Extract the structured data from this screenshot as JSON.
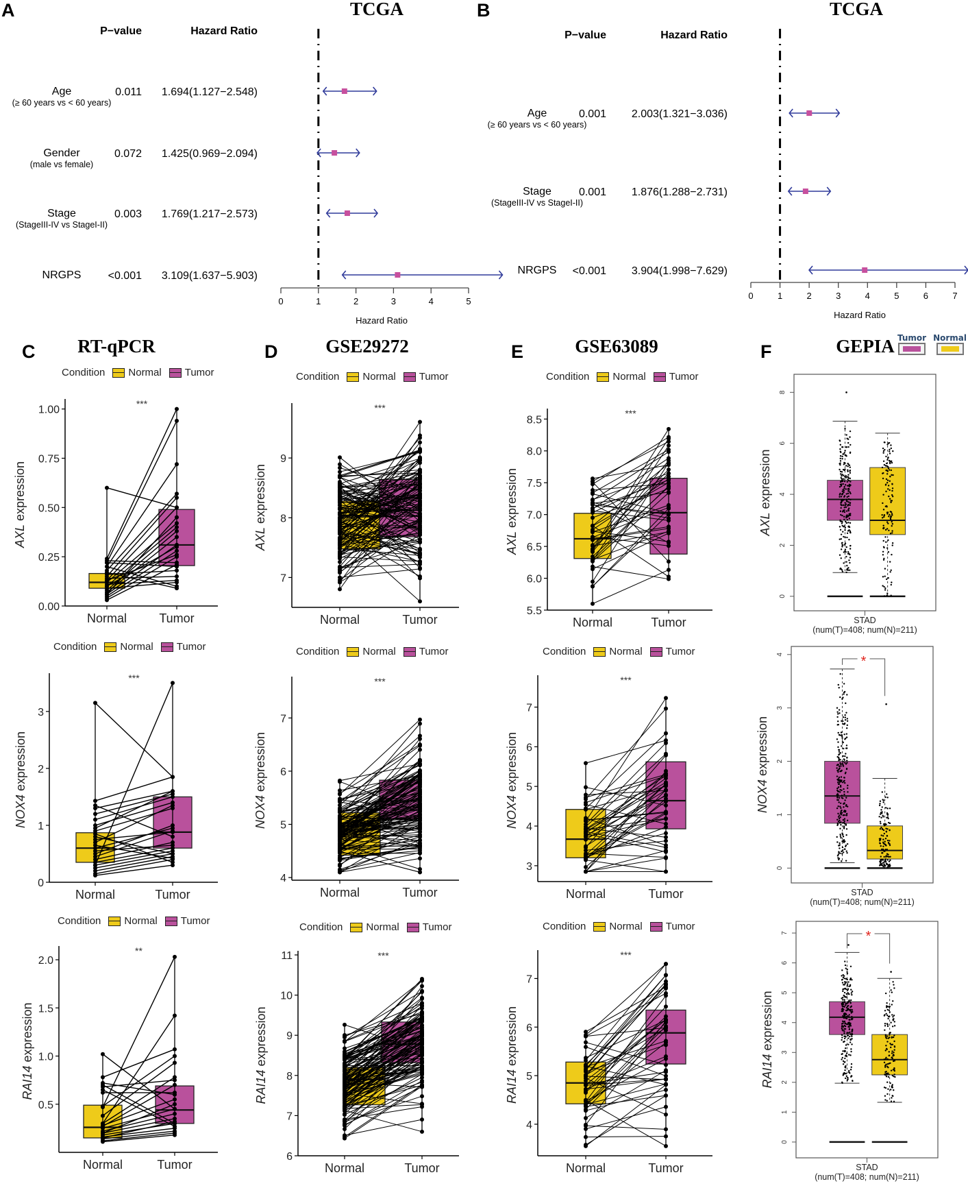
{
  "colors": {
    "normal": "#EECB1A",
    "tumor": "#B9519C",
    "forest_line": "#2F3A9A",
    "forest_point": "#C7509E",
    "significance_star": "#E0231B",
    "gepia_legend_label": "#2B4A6F"
  },
  "panels": {
    "A": {
      "letter": "A",
      "title": "TCGA"
    },
    "B": {
      "letter": "B",
      "title": "TCGA"
    },
    "C": {
      "letter": "C",
      "title": "RT-qPCR"
    },
    "D": {
      "letter": "D",
      "title": "GSE29272"
    },
    "E": {
      "letter": "E",
      "title": "GSE63089"
    },
    "F": {
      "letter": "F",
      "title": "GEPIA"
    }
  },
  "legend": {
    "title": "Condition",
    "normal": "Normal",
    "tumor": "Tumor"
  },
  "gepia_legend": {
    "tumor": "Tumor",
    "normal": "Normal"
  },
  "chart_data": [
    {
      "id": "A",
      "type": "forest",
      "title": "TCGA",
      "columns": {
        "pvalue": "P−value",
        "hr": "Hazard Ratio"
      },
      "xlabel": "Hazard Ratio",
      "xticks": [
        0,
        1,
        2,
        3,
        4,
        5
      ],
      "xlim": [
        0,
        5
      ],
      "reference_line": 1,
      "rows": [
        {
          "label": "Age",
          "sublabel": "(≥ 60 years vs < 60 years)",
          "pvalue": "0.011",
          "hr_text": "1.694(1.127−2.548)",
          "hr": 1.694,
          "lower": 1.127,
          "upper": 2.548
        },
        {
          "label": "Gender",
          "sublabel": "(male vs female)",
          "pvalue": "0.072",
          "hr_text": "1.425(0.969−2.094)",
          "hr": 1.425,
          "lower": 0.969,
          "upper": 2.094
        },
        {
          "label": "Stage",
          "sublabel": "(StageIII-IV vs StageI-II)",
          "pvalue": "0.003",
          "hr_text": "1.769(1.217−2.573)",
          "hr": 1.769,
          "lower": 1.217,
          "upper": 2.573
        },
        {
          "label": "NRGPS",
          "sublabel": "",
          "pvalue": "<0.001",
          "hr_text": "3.109(1.637−5.903)",
          "hr": 3.109,
          "lower": 1.637,
          "upper": 5.903
        }
      ]
    },
    {
      "id": "B",
      "type": "forest",
      "title": "TCGA",
      "columns": {
        "pvalue": "P−value",
        "hr": "Hazard Ratio"
      },
      "xlabel": "Hazard Ratio",
      "xticks": [
        0,
        1,
        2,
        3,
        4,
        5,
        6,
        7
      ],
      "xlim": [
        0,
        7
      ],
      "reference_line": 1,
      "rows": [
        {
          "label": "Age",
          "sublabel": "(≥ 60 years vs < 60 years)",
          "pvalue": "0.001",
          "hr_text": "2.003(1.321−3.036)",
          "hr": 2.003,
          "lower": 1.321,
          "upper": 3.036
        },
        {
          "label": "Stage",
          "sublabel": "(StageIII-IV vs StageI-II)",
          "pvalue": "0.001",
          "hr_text": "1.876(1.288−2.731)",
          "hr": 1.876,
          "lower": 1.288,
          "upper": 2.731
        },
        {
          "label": "NRGPS",
          "sublabel": "",
          "pvalue": "<0.001",
          "hr_text": "3.904(1.998−7.629)",
          "hr": 3.904,
          "lower": 1.998,
          "upper": 7.629
        }
      ]
    },
    {
      "id": "C",
      "type": "paired-box",
      "dataset": "RT-qPCR",
      "categories": [
        "Normal",
        "Tumor"
      ],
      "plots": [
        {
          "gene": "AXL",
          "ylabel_suffix": " expression",
          "ylim": [
            0,
            1.03
          ],
          "yticks": [
            0,
            0.25,
            0.5,
            0.75,
            1.0
          ],
          "ytick_labels": [
            "0.00",
            "0.25",
            "0.50",
            "0.75",
            "1.00"
          ],
          "signif": "***",
          "box": {
            "Normal": {
              "q1": 0.09,
              "median": 0.12,
              "q3": 0.165
            },
            "Tumor": {
              "q1": 0.205,
              "median": 0.31,
              "q3": 0.49
            }
          },
          "pairs": [
            [
              0.6,
              0.5
            ],
            [
              0.24,
              1.0
            ],
            [
              0.22,
              0.94
            ],
            [
              0.2,
              0.72
            ],
            [
              0.18,
              0.57
            ],
            [
              0.15,
              0.55
            ],
            [
              0.13,
              0.5
            ],
            [
              0.12,
              0.42
            ],
            [
              0.1,
              0.4
            ],
            [
              0.08,
              0.38
            ],
            [
              0.07,
              0.35
            ],
            [
              0.06,
              0.31
            ],
            [
              0.05,
              0.28
            ],
            [
              0.04,
              0.25
            ],
            [
              0.23,
              0.22
            ],
            [
              0.22,
              0.2
            ],
            [
              0.16,
              0.18
            ],
            [
              0.14,
              0.15
            ],
            [
              0.11,
              0.13
            ],
            [
              0.09,
              0.12
            ],
            [
              0.2,
              0.1
            ],
            [
              0.17,
              0.09
            ],
            [
              0.13,
              0.26
            ],
            [
              0.1,
              0.3
            ],
            [
              0.06,
              0.45
            ],
            [
              0.03,
              0.21
            ]
          ]
        },
        {
          "gene": "NOX4",
          "ylabel_suffix": " expression",
          "ylim": [
            0,
            3.6
          ],
          "yticks": [
            0,
            1,
            2,
            3
          ],
          "ytick_labels": [
            "0",
            "1",
            "2",
            "3"
          ],
          "signif": "***",
          "box": {
            "Normal": {
              "q1": 0.35,
              "median": 0.6,
              "q3": 0.87
            },
            "Tumor": {
              "q1": 0.6,
              "median": 0.88,
              "q3": 1.5
            }
          },
          "pairs": [
            [
              3.15,
              1.85
            ],
            [
              0.3,
              3.5
            ],
            [
              1.43,
              1.85
            ],
            [
              1.3,
              1.6
            ],
            [
              1.2,
              1.55
            ],
            [
              1.1,
              1.5
            ],
            [
              1.0,
              1.4
            ],
            [
              0.9,
              1.3
            ],
            [
              0.8,
              0.5
            ],
            [
              0.7,
              1.35
            ],
            [
              0.6,
              0.95
            ],
            [
              0.5,
              1.0
            ],
            [
              0.45,
              0.9
            ],
            [
              0.4,
              0.7
            ],
            [
              0.35,
              0.6
            ],
            [
              0.3,
              0.55
            ],
            [
              0.25,
              0.5
            ],
            [
              0.2,
              0.45
            ],
            [
              0.15,
              0.4
            ],
            [
              0.12,
              0.3
            ],
            [
              0.85,
              0.35
            ],
            [
              0.75,
              0.88
            ],
            [
              0.55,
              0.65
            ],
            [
              0.65,
              0.42
            ],
            [
              1.35,
              0.8
            ],
            [
              0.95,
              1.6
            ]
          ]
        },
        {
          "gene": "RAI14",
          "ylabel_suffix": " expression",
          "ylim": [
            0,
            2.1
          ],
          "yticks": [
            0.5,
            1.0,
            1.5,
            2.0
          ],
          "ytick_labels": [
            "0.5",
            "1.0",
            "1.5",
            "2.0"
          ],
          "signif": "**",
          "box": {
            "Normal": {
              "q1": 0.15,
              "median": 0.26,
              "q3": 0.49
            },
            "Tumor": {
              "q1": 0.3,
              "median": 0.44,
              "q3": 0.69
            }
          },
          "pairs": [
            [
              1.02,
              0.45
            ],
            [
              0.47,
              2.03
            ],
            [
              0.3,
              1.42
            ],
            [
              0.78,
              1.07
            ],
            [
              0.72,
              0.6
            ],
            [
              0.7,
              0.3
            ],
            [
              0.68,
              0.75
            ],
            [
              0.62,
              0.62
            ],
            [
              0.48,
              1.0
            ],
            [
              0.38,
              0.93
            ],
            [
              0.3,
              0.78
            ],
            [
              0.28,
              0.55
            ],
            [
              0.25,
              0.45
            ],
            [
              0.22,
              0.4
            ],
            [
              0.2,
              0.35
            ],
            [
              0.18,
              0.3
            ],
            [
              0.16,
              0.25
            ],
            [
              0.14,
              0.22
            ],
            [
              0.12,
              0.2
            ],
            [
              0.11,
              0.18
            ],
            [
              0.65,
              0.27
            ],
            [
              0.27,
              0.7
            ],
            [
              0.2,
              0.5
            ],
            [
              0.15,
              0.32
            ]
          ]
        }
      ]
    },
    {
      "id": "D",
      "type": "paired-box",
      "dataset": "GSE29272",
      "categories": [
        "Normal",
        "Tumor"
      ],
      "plots": [
        {
          "gene": "AXL",
          "ylabel_suffix": " expression",
          "ylim": [
            6.5,
            9.85
          ],
          "yticks": [
            7,
            8,
            9
          ],
          "ytick_labels": [
            "7",
            "8",
            "9"
          ],
          "signif": "***",
          "box": {
            "Normal": {
              "q1": 7.48,
              "median": 8.03,
              "q3": 8.28
            },
            "Tumor": {
              "q1": 7.68,
              "median": 8.13,
              "q3": 8.64
            }
          },
          "dense": {
            "n": 130,
            "normal_mean": 7.95,
            "normal_sd": 0.5,
            "tumor_mean": 8.15,
            "tumor_sd": 0.6,
            "corr": 0.1,
            "min": 6.6,
            "max": 9.7
          }
        },
        {
          "gene": "NOX4",
          "ylabel_suffix": " expression",
          "ylim": [
            3.95,
            7.7
          ],
          "yticks": [
            4,
            5,
            6,
            7
          ],
          "ytick_labels": [
            "4",
            "5",
            "6",
            "7"
          ],
          "signif": "***",
          "box": {
            "Normal": {
              "q1": 4.42,
              "median": 4.97,
              "q3": 5.22
            },
            "Tumor": {
              "q1": 5.1,
              "median": 5.44,
              "q3": 5.83
            }
          },
          "dense": {
            "n": 130,
            "normal_mean": 4.85,
            "normal_sd": 0.35,
            "tumor_mean": 5.45,
            "tumor_sd": 0.6,
            "corr": 0.5,
            "min": 4.1,
            "max": 7.56
          }
        },
        {
          "gene": "RAI14",
          "ylabel_suffix": " expression",
          "ylim": [
            6,
            11
          ],
          "yticks": [
            6,
            7,
            8,
            9,
            10,
            11
          ],
          "ytick_labels": [
            "6",
            "7",
            "8",
            "9",
            "10",
            "11"
          ],
          "signif": "***",
          "box": {
            "Normal": {
              "q1": 7.27,
              "median": 7.9,
              "q3": 8.2
            },
            "Tumor": {
              "q1": 8.32,
              "median": 8.78,
              "q3": 9.33
            }
          },
          "dense": {
            "n": 130,
            "normal_mean": 7.8,
            "normal_sd": 0.65,
            "tumor_mean": 8.8,
            "tumor_sd": 0.7,
            "corr": 0.7,
            "min": 6.2,
            "max": 10.8
          }
        }
      ]
    },
    {
      "id": "E",
      "type": "paired-box",
      "dataset": "GSE63089",
      "categories": [
        "Normal",
        "Tumor"
      ],
      "plots": [
        {
          "gene": "AXL",
          "ylabel_suffix": " expression",
          "ylim": [
            5.5,
            8.6
          ],
          "yticks": [
            5.5,
            6.0,
            6.5,
            7.0,
            7.5,
            8.0,
            8.5
          ],
          "ytick_labels": [
            "5.5",
            "6.0",
            "6.5",
            "7.0",
            "7.5",
            "8.0",
            "8.5"
          ],
          "signif": "***",
          "box": {
            "Normal": {
              "q1": 6.31,
              "median": 6.62,
              "q3": 7.02
            },
            "Tumor": {
              "q1": 6.38,
              "median": 7.03,
              "q3": 7.57
            }
          },
          "dense": {
            "n": 45,
            "normal_mean": 6.7,
            "normal_sd": 0.55,
            "tumor_mean": 7.05,
            "tumor_sd": 0.65,
            "corr": 0.2,
            "min": 5.6,
            "max": 8.45
          }
        },
        {
          "gene": "NOX4",
          "ylabel_suffix": " expression",
          "ylim": [
            2.6,
            7.7
          ],
          "yticks": [
            3,
            4,
            5,
            6,
            7
          ],
          "ytick_labels": [
            "3",
            "4",
            "5",
            "6",
            "7"
          ],
          "signif": "***",
          "box": {
            "Normal": {
              "q1": 3.2,
              "median": 3.67,
              "q3": 4.42
            },
            "Tumor": {
              "q1": 3.93,
              "median": 4.64,
              "q3": 5.62
            }
          },
          "dense": {
            "n": 45,
            "normal_mean": 3.9,
            "normal_sd": 0.7,
            "tumor_mean": 4.8,
            "tumor_sd": 1.0,
            "corr": 0.3,
            "min": 2.85,
            "max": 7.47
          }
        },
        {
          "gene": "RAI14",
          "ylabel_suffix": " expression",
          "ylim": [
            3.35,
            7.5
          ],
          "yticks": [
            4,
            5,
            6,
            7
          ],
          "ytick_labels": [
            "4",
            "5",
            "6",
            "7"
          ],
          "signif": "***",
          "box": {
            "Normal": {
              "q1": 4.42,
              "median": 4.85,
              "q3": 5.28
            },
            "Tumor": {
              "q1": 5.24,
              "median": 5.88,
              "q3": 6.35
            }
          },
          "dense": {
            "n": 45,
            "normal_mean": 4.9,
            "normal_sd": 0.7,
            "tumor_mean": 5.85,
            "tumor_sd": 0.8,
            "corr": 0.5,
            "min": 3.55,
            "max": 7.3
          }
        }
      ]
    },
    {
      "id": "F",
      "type": "box-jitter",
      "dataset": "GEPIA",
      "groups": [
        "Tumor",
        "Normal"
      ],
      "xlabel": "STAD",
      "xsublabel": "(num(T)=408; num(N)=211)",
      "plots": [
        {
          "gene": "AXL",
          "ylabel_suffix": " expression",
          "ylim": [
            -0.3,
            8.6
          ],
          "yticks": [
            0,
            2,
            4,
            6,
            8
          ],
          "signif": "",
          "box": {
            "Tumor": {
              "lower": 0.93,
              "q1": 2.98,
              "median": 3.8,
              "q3": 4.55,
              "upper": 6.87,
              "max": 8.0
            },
            "Normal": {
              "lower": 0.0,
              "q1": 2.42,
              "median": 2.98,
              "q3": 5.05,
              "upper": 6.4,
              "max": 6.4
            }
          }
        },
        {
          "gene": "NOX4",
          "ylabel_suffix": " expression",
          "ylim": [
            -0.15,
            4.1
          ],
          "yticks": [
            0,
            1,
            2,
            3,
            4
          ],
          "signif": "*",
          "box": {
            "Tumor": {
              "lower": 0.1,
              "q1": 0.84,
              "median": 1.35,
              "q3": 2.0,
              "upper": 3.73,
              "max": 3.73
            },
            "Normal": {
              "lower": 0.0,
              "q1": 0.17,
              "median": 0.33,
              "q3": 0.79,
              "upper": 1.68,
              "max": 3.07
            }
          }
        },
        {
          "gene": "RAI14",
          "ylabel_suffix": " expression",
          "ylim": [
            -0.3,
            7.3
          ],
          "yticks": [
            0,
            1,
            2,
            3,
            4,
            5,
            6,
            7
          ],
          "signif": "*",
          "box": {
            "Tumor": {
              "lower": 1.97,
              "q1": 3.6,
              "median": 4.18,
              "q3": 4.7,
              "upper": 6.35,
              "max": 6.6
            },
            "Normal": {
              "lower": 1.33,
              "q1": 2.25,
              "median": 2.76,
              "q3": 3.6,
              "upper": 5.48,
              "max": 5.7
            }
          }
        }
      ]
    }
  ]
}
